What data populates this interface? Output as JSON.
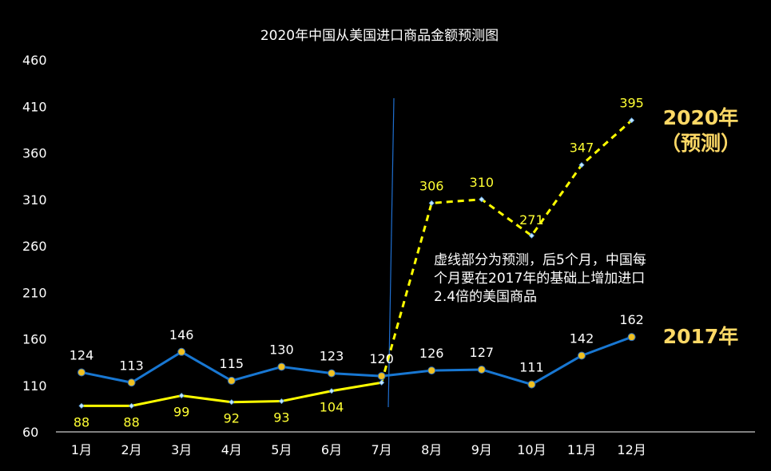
{
  "chart_data": {
    "type": "line",
    "title": "2020年中国从美国进口商品金额预测图",
    "xlabel": "",
    "ylabel": "",
    "categories": [
      "1月",
      "2月",
      "3月",
      "4月",
      "5月",
      "6月",
      "7月",
      "8月",
      "9月",
      "10月",
      "11月",
      "12月"
    ],
    "yticks": [
      "60",
      "110",
      "160",
      "210",
      "260",
      "310",
      "360",
      "410",
      "460"
    ],
    "ylim": [
      60,
      460
    ],
    "grid": false,
    "series": [
      {
        "name": "2017年",
        "values": [
          124,
          113,
          146,
          115,
          130,
          123,
          120,
          126,
          127,
          111,
          142,
          162
        ],
        "labels": [
          "124",
          "113",
          "146",
          "115",
          "130",
          "123",
          "120",
          "126",
          "127",
          "111",
          "142",
          "162"
        ],
        "color": "#1877d2",
        "marker_color": "#f0c020",
        "style": "solid"
      },
      {
        "name": "2020年（预测）",
        "name_line1": "2020年",
        "name_line2": "（预测）",
        "values": [
          88,
          88,
          99,
          92,
          93,
          104,
          113,
          306,
          310,
          271,
          347,
          395
        ],
        "labels": [
          "88",
          "88",
          "99",
          "92",
          "93",
          "104",
          "",
          "306",
          "310",
          "271",
          "347",
          "395"
        ],
        "color": "#ffff00",
        "label_color": "#ffff33",
        "solid_until_index": 6,
        "style": "solid-then-dashed"
      }
    ],
    "annotation": {
      "lines": [
        "虚线部分为预测，后5个月，中国每",
        "个月要在2017年的基础上增加进口",
        "2.4倍的美国商品"
      ]
    },
    "legend_color": "#ffd966"
  }
}
